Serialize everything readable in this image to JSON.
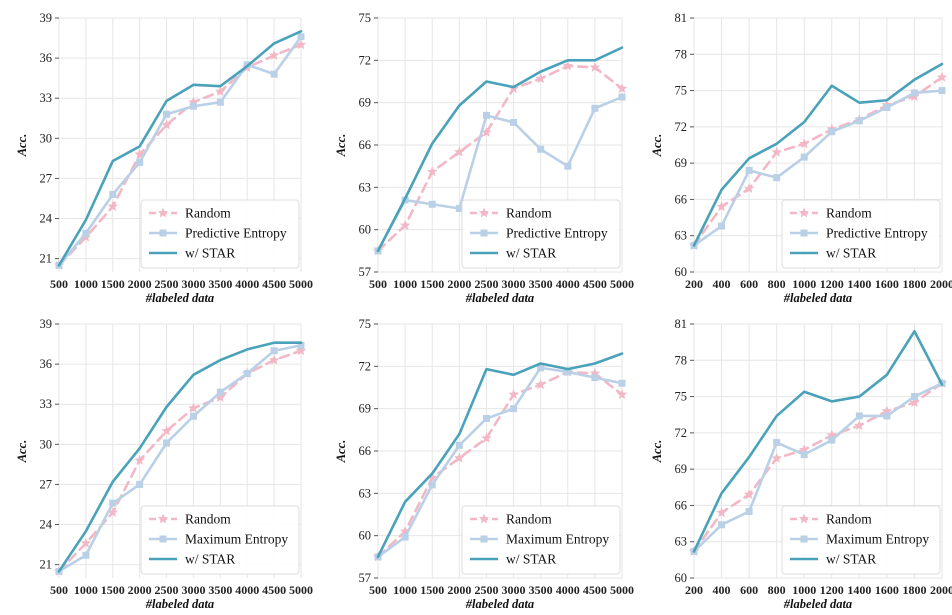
{
  "chart_data": [
    {
      "type": "line",
      "xlabel": "#labeled data",
      "ylabel": "Acc.",
      "x": [
        500,
        1000,
        1500,
        2000,
        2500,
        3000,
        3500,
        4000,
        4500,
        5000
      ],
      "x_ticks": [
        "500",
        "1000",
        "1500",
        "2000",
        "2500",
        "3000",
        "3500",
        "4000",
        "4500",
        "5000"
      ],
      "ylim": [
        20,
        39
      ],
      "y_ticks": [
        "21",
        "24",
        "27",
        "30",
        "33",
        "36",
        "39"
      ],
      "grid": true,
      "legend_position": "bottom-right",
      "series": [
        {
          "name": "Random",
          "color": "#f2b8c6",
          "style": "dashed",
          "marker": "star",
          "values": [
            20.5,
            22.6,
            24.9,
            28.8,
            31.0,
            32.7,
            33.5,
            35.3,
            36.2,
            37.0
          ]
        },
        {
          "name": "Predictive Entropy",
          "color": "#b9d0e6",
          "style": "solid",
          "marker": "square",
          "values": [
            20.5,
            22.9,
            25.8,
            28.2,
            31.8,
            32.4,
            32.7,
            35.5,
            34.8,
            37.6
          ]
        },
        {
          "name": "w/ STAR",
          "color": "#4aa2ba",
          "style": "solid",
          "marker": "none",
          "values": [
            20.5,
            23.9,
            28.3,
            29.4,
            32.8,
            34.0,
            33.9,
            35.4,
            37.1,
            38.0
          ]
        }
      ]
    },
    {
      "type": "line",
      "xlabel": "#labeled data",
      "ylabel": "Acc.",
      "x": [
        500,
        1000,
        1500,
        2000,
        2500,
        3000,
        3500,
        4000,
        4500,
        5000
      ],
      "x_ticks": [
        "500",
        "1000",
        "1500",
        "2000",
        "2500",
        "3000",
        "3500",
        "4000",
        "4500",
        "5000"
      ],
      "ylim": [
        57,
        75
      ],
      "y_ticks": [
        "57",
        "60",
        "63",
        "66",
        "69",
        "72",
        "75"
      ],
      "grid": true,
      "legend_position": "bottom-right",
      "series": [
        {
          "name": "Random",
          "color": "#f2b8c6",
          "style": "dashed",
          "marker": "star",
          "values": [
            58.5,
            60.3,
            64.1,
            65.5,
            66.9,
            70.0,
            70.7,
            71.6,
            71.5,
            70.0
          ]
        },
        {
          "name": "Predictive Entropy",
          "color": "#b9d0e6",
          "style": "solid",
          "marker": "square",
          "values": [
            58.5,
            62.1,
            61.8,
            61.5,
            68.1,
            67.6,
            65.7,
            64.5,
            68.6,
            69.4
          ]
        },
        {
          "name": "w/ STAR",
          "color": "#4aa2ba",
          "style": "solid",
          "marker": "none",
          "values": [
            58.5,
            62.2,
            66.1,
            68.8,
            70.5,
            70.1,
            71.2,
            72.0,
            72.0,
            72.9
          ]
        }
      ]
    },
    {
      "type": "line",
      "xlabel": "#labeled data",
      "ylabel": "Acc.",
      "x": [
        200,
        400,
        600,
        800,
        1000,
        1200,
        1400,
        1600,
        1800,
        2000
      ],
      "x_ticks": [
        "200",
        "400",
        "600",
        "800",
        "1000",
        "1200",
        "1400",
        "1600",
        "1800",
        "2000"
      ],
      "ylim": [
        60,
        81
      ],
      "y_ticks": [
        "60",
        "63",
        "66",
        "69",
        "72",
        "75",
        "78",
        "81"
      ],
      "grid": true,
      "legend_position": "bottom-right",
      "series": [
        {
          "name": "Random",
          "color": "#f2b8c6",
          "style": "dashed",
          "marker": "star",
          "values": [
            62.2,
            65.4,
            66.9,
            69.9,
            70.6,
            71.8,
            72.6,
            73.8,
            74.5,
            76.1
          ]
        },
        {
          "name": "Predictive Entropy",
          "color": "#b9d0e6",
          "style": "solid",
          "marker": "square",
          "values": [
            62.2,
            63.8,
            68.4,
            67.8,
            69.5,
            71.6,
            72.5,
            73.6,
            74.8,
            75.0
          ]
        },
        {
          "name": "w/ STAR",
          "color": "#4aa2ba",
          "style": "solid",
          "marker": "none",
          "values": [
            62.2,
            66.8,
            69.4,
            70.6,
            72.4,
            75.4,
            74.0,
            74.2,
            75.9,
            77.2
          ]
        }
      ]
    },
    {
      "type": "line",
      "xlabel": "#labeled data",
      "ylabel": "Acc.",
      "x": [
        500,
        1000,
        1500,
        2000,
        2500,
        3000,
        3500,
        4000,
        4500,
        5000
      ],
      "x_ticks": [
        "500",
        "1000",
        "1500",
        "2000",
        "2500",
        "3000",
        "3500",
        "4000",
        "4500",
        "5000"
      ],
      "ylim": [
        20,
        39
      ],
      "y_ticks": [
        "21",
        "24",
        "27",
        "30",
        "33",
        "36",
        "39"
      ],
      "grid": true,
      "legend_position": "bottom-right",
      "series": [
        {
          "name": "Random",
          "color": "#f2b8c6",
          "style": "dashed",
          "marker": "star",
          "values": [
            20.5,
            22.6,
            24.9,
            28.8,
            31.0,
            32.7,
            33.5,
            35.3,
            36.3,
            37.0
          ]
        },
        {
          "name": "Maximum Entropy",
          "color": "#b9d0e6",
          "style": "solid",
          "marker": "square",
          "values": [
            20.5,
            21.7,
            25.6,
            27.0,
            30.1,
            32.1,
            33.9,
            35.3,
            37.0,
            37.4
          ]
        },
        {
          "name": "w/ STAR",
          "color": "#4aa2ba",
          "style": "solid",
          "marker": "none",
          "values": [
            20.5,
            23.5,
            27.2,
            29.7,
            32.8,
            35.2,
            36.3,
            37.1,
            37.6,
            37.6
          ]
        }
      ]
    },
    {
      "type": "line",
      "xlabel": "#labeled data",
      "ylabel": "Acc.",
      "x": [
        500,
        1000,
        1500,
        2000,
        2500,
        3000,
        3500,
        4000,
        4500,
        5000
      ],
      "x_ticks": [
        "500",
        "1000",
        "1500",
        "2000",
        "2500",
        "3000",
        "3500",
        "4000",
        "4500",
        "5000"
      ],
      "ylim": [
        57,
        75
      ],
      "y_ticks": [
        "57",
        "60",
        "63",
        "66",
        "69",
        "72",
        "75"
      ],
      "grid": true,
      "legend_position": "bottom-right",
      "series": [
        {
          "name": "Random",
          "color": "#f2b8c6",
          "style": "dashed",
          "marker": "star",
          "values": [
            58.5,
            60.3,
            64.1,
            65.5,
            66.9,
            70.0,
            70.7,
            71.6,
            71.5,
            70.0
          ]
        },
        {
          "name": "Maximum Entropy",
          "color": "#b9d0e6",
          "style": "solid",
          "marker": "square",
          "values": [
            58.5,
            59.9,
            63.6,
            66.4,
            68.3,
            69.0,
            71.9,
            71.6,
            71.2,
            70.8
          ]
        },
        {
          "name": "w/ STAR",
          "color": "#4aa2ba",
          "style": "solid",
          "marker": "none",
          "values": [
            58.5,
            62.4,
            64.4,
            67.2,
            71.8,
            71.4,
            72.2,
            71.8,
            72.2,
            72.9
          ]
        }
      ]
    },
    {
      "type": "line",
      "xlabel": "#labeled data",
      "ylabel": "Acc.",
      "x": [
        200,
        400,
        600,
        800,
        1000,
        1200,
        1400,
        1600,
        1800,
        2000
      ],
      "x_ticks": [
        "200",
        "400",
        "600",
        "800",
        "1000",
        "1200",
        "1400",
        "1600",
        "1800",
        "2000"
      ],
      "ylim": [
        60,
        81
      ],
      "y_ticks": [
        "60",
        "63",
        "66",
        "69",
        "72",
        "75",
        "78",
        "81"
      ],
      "grid": true,
      "legend_position": "bottom-right",
      "series": [
        {
          "name": "Random",
          "color": "#f2b8c6",
          "style": "dashed",
          "marker": "star",
          "values": [
            62.2,
            65.4,
            66.9,
            69.9,
            70.6,
            71.8,
            72.6,
            73.8,
            74.5,
            76.1
          ]
        },
        {
          "name": "Maximum Entropy",
          "color": "#b9d0e6",
          "style": "solid",
          "marker": "square",
          "values": [
            62.2,
            64.4,
            65.5,
            71.2,
            70.2,
            71.4,
            73.4,
            73.4,
            75.0,
            76.1
          ]
        },
        {
          "name": "w/ STAR",
          "color": "#4aa2ba",
          "style": "solid",
          "marker": "none",
          "values": [
            62.2,
            67.0,
            70.0,
            73.4,
            75.4,
            74.6,
            75.0,
            76.8,
            80.4,
            76.0
          ]
        }
      ]
    }
  ]
}
